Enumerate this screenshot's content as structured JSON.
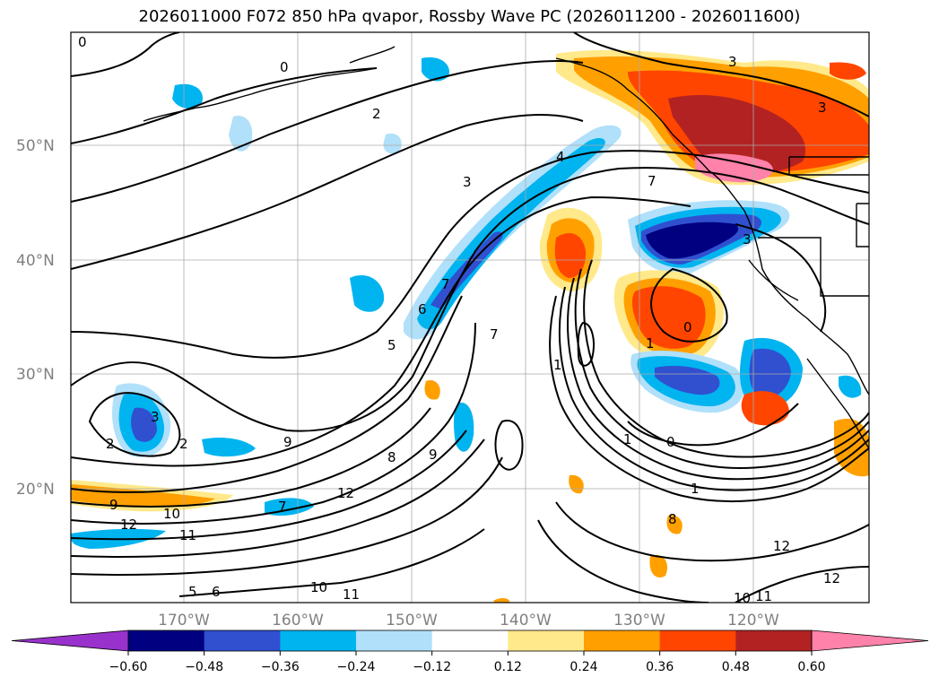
{
  "title": "2026011000 F072 850 hPa qvapor, Rossby Wave PC (2026011200 - 2026011600)",
  "lat_labels": [
    "50°N",
    "40°N",
    "30°N",
    "20°N"
  ],
  "lon_labels": [
    "170°W",
    "160°W",
    "150°W",
    "140°W",
    "130°W",
    "120°W"
  ],
  "colorbar": {
    "colors": [
      "#9932cc",
      "#000080",
      "#3050d0",
      "#00b4f0",
      "#b0e0fa",
      "#ffffff",
      "#ffe98a",
      "#ffa000",
      "#ff4500",
      "#b22222",
      "#ff82aa"
    ],
    "ticks": [
      "−0.60",
      "−0.48",
      "−0.36",
      "−0.24",
      "−0.12",
      "0.12",
      "0.24",
      "0.36",
      "0.48",
      "0.60"
    ]
  },
  "contour_labels": [
    "0",
    "0",
    "2",
    "3",
    "3",
    "4",
    "3",
    "7",
    "3",
    "5",
    "6",
    "7",
    "1",
    "7",
    "0",
    "1",
    "2",
    "0",
    "1",
    "3",
    "2",
    "9",
    "9",
    "8",
    "9",
    "12",
    "10",
    "11",
    "5",
    "6",
    "7",
    "10",
    "11",
    "8",
    "1",
    "12",
    "12",
    "10",
    "11",
    "12"
  ]
}
